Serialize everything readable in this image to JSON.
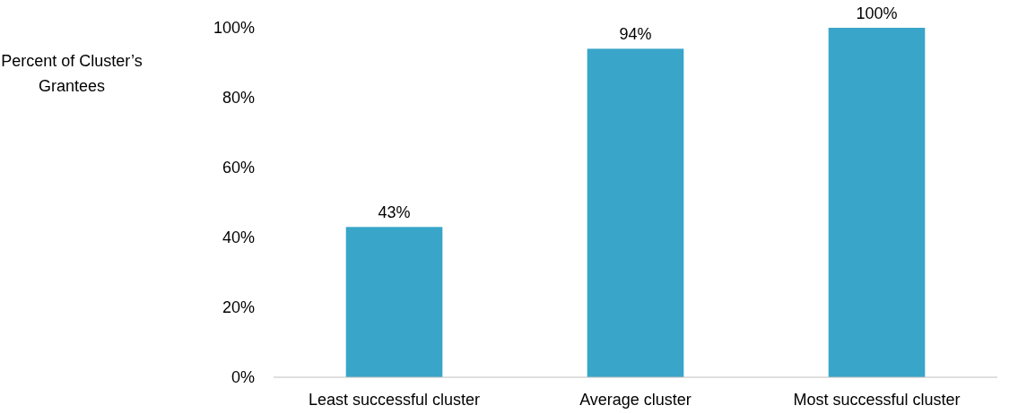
{
  "chart_data": {
    "type": "bar",
    "ylabel": "Percent of Cluster’s Grantees",
    "categories": [
      "Least successful cluster",
      "Average cluster",
      "Most successful cluster"
    ],
    "values": [
      43,
      94,
      100
    ],
    "color": "#38a5c9",
    "value_labels": [
      "43%",
      "94%",
      "100%"
    ],
    "ylim": [
      0,
      100
    ],
    "yticks": [
      {
        "value": 0,
        "label": "0%"
      },
      {
        "value": 20,
        "label": "20%"
      },
      {
        "value": 40,
        "label": "40%"
      },
      {
        "value": 60,
        "label": "60%"
      },
      {
        "value": 80,
        "label": "80%"
      },
      {
        "value": 100,
        "label": "100%"
      }
    ],
    "grid": false
  }
}
